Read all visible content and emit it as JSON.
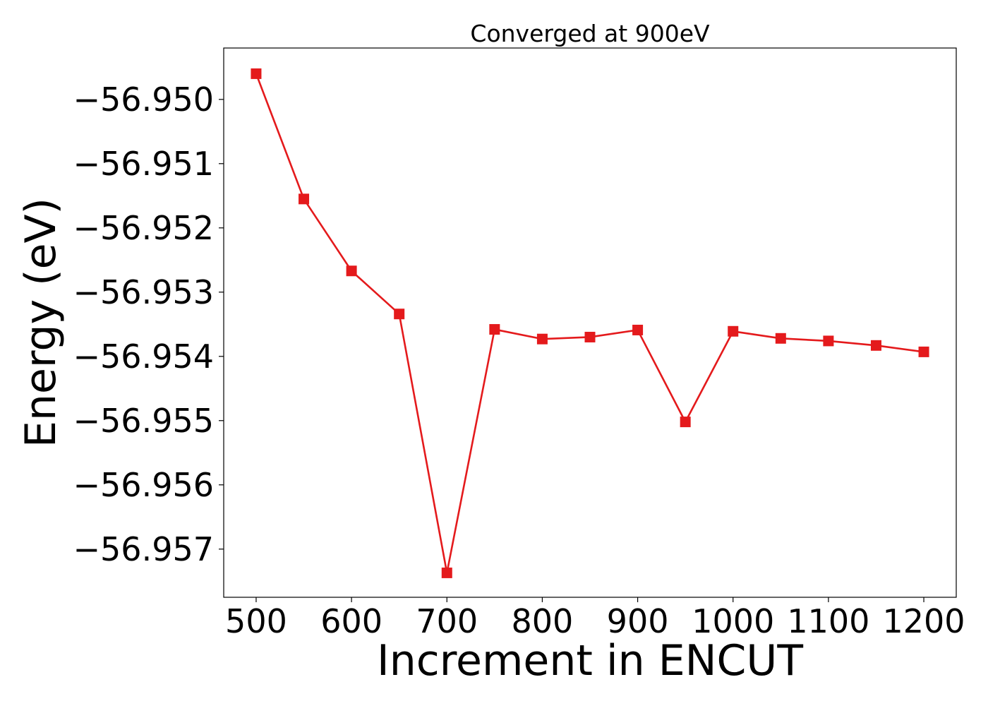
{
  "chart_data": {
    "type": "line",
    "title": "Converged at 900eV",
    "xlabel": "Increment in ENCUT",
    "ylabel": "Energy (eV)",
    "xlim": [
      466,
      1234
    ],
    "ylim": [
      -56.95775,
      -56.9492
    ],
    "xticks": [
      500,
      600,
      700,
      800,
      900,
      1000,
      1100,
      1200
    ],
    "yticks": [
      -56.95,
      -56.951,
      -56.952,
      -56.953,
      -56.954,
      -56.955,
      -56.956,
      -56.957
    ],
    "ytick_labels": [
      "−56.950",
      "−56.951",
      "−56.952",
      "−56.953",
      "−56.954",
      "−56.955",
      "−56.956",
      "−56.957"
    ],
    "grid": false,
    "series": [
      {
        "color": "#e41a1c",
        "marker": "square",
        "x": [
          500,
          550,
          600,
          650,
          700,
          750,
          800,
          850,
          900,
          950,
          1000,
          1050,
          1100,
          1150,
          1200
        ],
        "y": [
          -56.9496,
          -56.95155,
          -56.95267,
          -56.95334,
          -56.95737,
          -56.95358,
          -56.95373,
          -56.9537,
          -56.95359,
          -56.95502,
          -56.95361,
          -56.95372,
          -56.95376,
          -56.95383,
          -56.95393
        ]
      }
    ]
  }
}
